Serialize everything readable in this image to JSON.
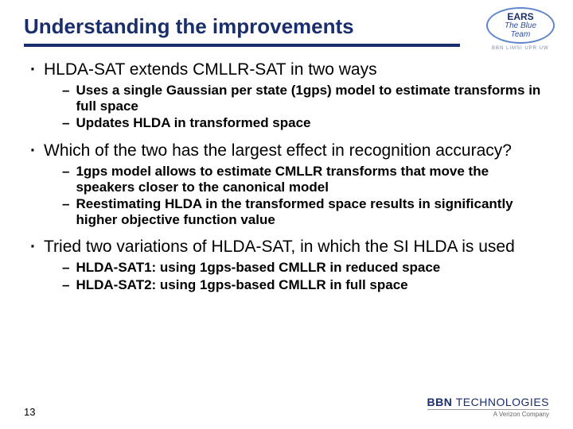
{
  "title": "Understanding the improvements",
  "logo": {
    "line1": "EARS",
    "line2": "The Blue",
    "line3": "Team",
    "ring": "BBN LIMSI UPR UW"
  },
  "bullets": [
    {
      "text": "HLDA-SAT extends CMLLR-SAT in two ways",
      "sub": [
        "Uses a single Gaussian per state (1gps) model to estimate transforms in full space",
        "Updates HLDA in transformed space"
      ]
    },
    {
      "text": "Which of the two has the largest effect in recognition accuracy?",
      "sub": [
        "1gps model allows to estimate CMLLR transforms that move the speakers closer to the canonical model",
        "Reestimating HLDA in the transformed space results in significantly higher objective function value"
      ]
    },
    {
      "text": "Tried two variations of HLDA-SAT, in which the SI HLDA is used",
      "sub": [
        "HLDA-SAT1: using 1gps-based CMLLR in reduced space",
        "HLDA-SAT2: using 1gps-based CMLLR in full space"
      ]
    }
  ],
  "pageNumber": "13",
  "footer": {
    "company": "BBN",
    "companySuffix": "TECHNOLOGIES",
    "tagline": "A Verizon Company"
  },
  "colors": {
    "titleColor": "#1a2e6b",
    "background": "#ffffff"
  }
}
